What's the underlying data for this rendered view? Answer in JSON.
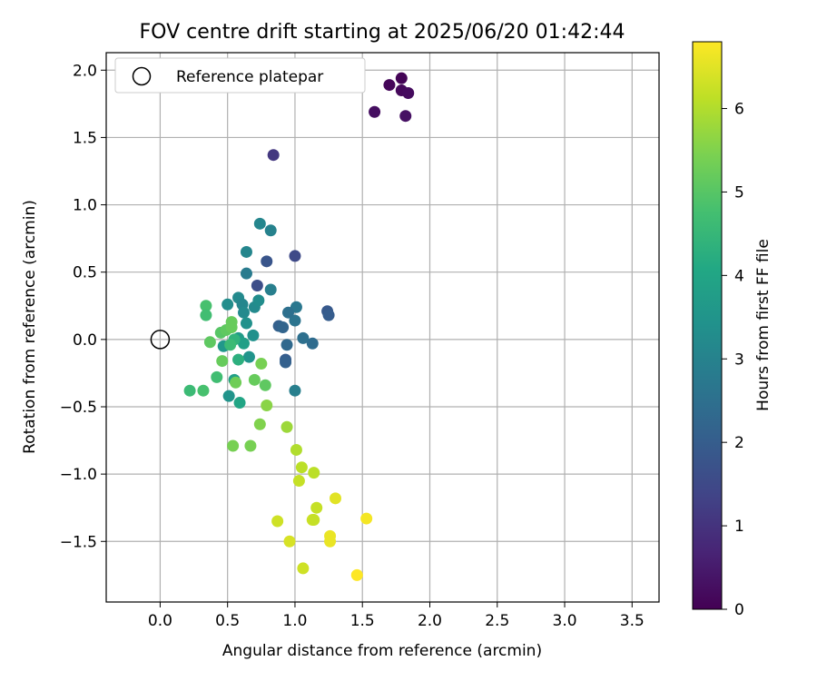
{
  "chart_data": {
    "type": "scatter",
    "title": "FOV centre drift starting at 2025/06/20 01:42:44",
    "xlabel": "Angular distance from reference (arcmin)",
    "ylabel": "Rotation from reference (arcmin)",
    "xlim": [
      -0.4,
      3.7
    ],
    "ylim": [
      -1.95,
      2.13
    ],
    "xticks": [
      0.0,
      0.5,
      1.0,
      1.5,
      2.0,
      2.5,
      3.0,
      3.5
    ],
    "xtick_labels": [
      "0.0",
      "0.5",
      "1.0",
      "1.5",
      "2.0",
      "2.5",
      "3.0",
      "3.5"
    ],
    "yticks": [
      -1.5,
      -1.0,
      -0.5,
      0.0,
      0.5,
      1.0,
      1.5,
      2.0
    ],
    "ytick_labels": [
      "−1.5",
      "−1.0",
      "−0.5",
      "0.0",
      "0.5",
      "1.0",
      "1.5",
      "2.0"
    ],
    "grid": true,
    "colormap": "viridis",
    "colorbar": {
      "label": "Hours from first FF file",
      "range": [
        0,
        6.8
      ],
      "ticks": [
        0,
        1,
        2,
        3,
        4,
        5,
        6
      ],
      "tick_labels": [
        "0",
        "1",
        "2",
        "3",
        "4",
        "5",
        "6"
      ]
    },
    "legend": {
      "position": "upper-left",
      "entries": [
        {
          "label": "Reference platepar",
          "marker": "open-circle"
        }
      ]
    },
    "reference_point": {
      "x": 0.0,
      "y": 0.0
    },
    "points": [
      {
        "x": 1.79,
        "y": 1.94,
        "c": 0.05
      },
      {
        "x": 1.7,
        "y": 1.89,
        "c": 0.1
      },
      {
        "x": 1.79,
        "y": 1.85,
        "c": 0.15
      },
      {
        "x": 1.84,
        "y": 1.83,
        "c": 0.2
      },
      {
        "x": 1.59,
        "y": 1.69,
        "c": 0.25
      },
      {
        "x": 1.82,
        "y": 1.66,
        "c": 0.3
      },
      {
        "x": 0.84,
        "y": 1.37,
        "c": 1.1
      },
      {
        "x": 1.0,
        "y": 0.62,
        "c": 1.5
      },
      {
        "x": 0.72,
        "y": 0.4,
        "c": 1.6
      },
      {
        "x": 0.79,
        "y": 0.58,
        "c": 1.8
      },
      {
        "x": 1.24,
        "y": 0.21,
        "c": 1.9
      },
      {
        "x": 1.25,
        "y": 0.18,
        "c": 2.0
      },
      {
        "x": 0.88,
        "y": 0.1,
        "c": 2.1
      },
      {
        "x": 0.91,
        "y": 0.09,
        "c": 2.2
      },
      {
        "x": 0.93,
        "y": -0.15,
        "c": 2.0
      },
      {
        "x": 0.93,
        "y": -0.17,
        "c": 2.1
      },
      {
        "x": 0.94,
        "y": -0.04,
        "c": 2.3
      },
      {
        "x": 1.13,
        "y": -0.03,
        "c": 2.4
      },
      {
        "x": 1.06,
        "y": 0.01,
        "c": 2.5
      },
      {
        "x": 1.0,
        "y": 0.14,
        "c": 2.6
      },
      {
        "x": 1.01,
        "y": 0.24,
        "c": 2.7
      },
      {
        "x": 0.95,
        "y": 0.2,
        "c": 2.5
      },
      {
        "x": 1.0,
        "y": -0.38,
        "c": 2.9
      },
      {
        "x": 0.64,
        "y": 0.49,
        "c": 2.8
      },
      {
        "x": 0.82,
        "y": 0.37,
        "c": 2.9
      },
      {
        "x": 0.74,
        "y": 0.86,
        "c": 3.1
      },
      {
        "x": 0.82,
        "y": 0.81,
        "c": 3.0
      },
      {
        "x": 0.64,
        "y": 0.65,
        "c": 3.1
      },
      {
        "x": 0.58,
        "y": 0.31,
        "c": 3.2
      },
      {
        "x": 0.61,
        "y": 0.26,
        "c": 3.1
      },
      {
        "x": 0.7,
        "y": 0.24,
        "c": 3.2
      },
      {
        "x": 0.73,
        "y": 0.29,
        "c": 3.3
      },
      {
        "x": 0.62,
        "y": 0.2,
        "c": 3.2
      },
      {
        "x": 0.5,
        "y": 0.26,
        "c": 3.3
      },
      {
        "x": 0.64,
        "y": 0.12,
        "c": 3.4
      },
      {
        "x": 0.69,
        "y": 0.03,
        "c": 3.4
      },
      {
        "x": 0.66,
        "y": -0.13,
        "c": 3.5
      },
      {
        "x": 0.47,
        "y": -0.05,
        "c": 3.6
      },
      {
        "x": 0.58,
        "y": 0.01,
        "c": 3.7
      },
      {
        "x": 0.62,
        "y": -0.03,
        "c": 3.8
      },
      {
        "x": 0.51,
        "y": -0.42,
        "c": 3.5
      },
      {
        "x": 0.55,
        "y": -0.3,
        "c": 3.8
      },
      {
        "x": 0.59,
        "y": -0.47,
        "c": 4.0
      },
      {
        "x": 0.58,
        "y": -0.15,
        "c": 4.3
      },
      {
        "x": 0.55,
        "y": 0.0,
        "c": 4.4
      },
      {
        "x": 0.52,
        "y": -0.04,
        "c": 4.6
      },
      {
        "x": 0.42,
        "y": -0.28,
        "c": 4.7
      },
      {
        "x": 0.22,
        "y": -0.38,
        "c": 4.6
      },
      {
        "x": 0.32,
        "y": -0.38,
        "c": 4.8
      },
      {
        "x": 0.34,
        "y": 0.25,
        "c": 4.8
      },
      {
        "x": 0.34,
        "y": 0.18,
        "c": 4.7
      },
      {
        "x": 0.45,
        "y": 0.05,
        "c": 5.0
      },
      {
        "x": 0.49,
        "y": 0.07,
        "c": 5.1
      },
      {
        "x": 0.53,
        "y": 0.09,
        "c": 5.2
      },
      {
        "x": 0.53,
        "y": 0.13,
        "c": 5.2
      },
      {
        "x": 0.37,
        "y": -0.02,
        "c": 5.1
      },
      {
        "x": 0.46,
        "y": -0.16,
        "c": 5.2
      },
      {
        "x": 0.56,
        "y": -0.32,
        "c": 5.3
      },
      {
        "x": 0.7,
        "y": -0.3,
        "c": 5.2
      },
      {
        "x": 0.78,
        "y": -0.34,
        "c": 5.1
      },
      {
        "x": 0.75,
        "y": -0.18,
        "c": 5.4
      },
      {
        "x": 0.79,
        "y": -0.49,
        "c": 5.6
      },
      {
        "x": 0.74,
        "y": -0.63,
        "c": 5.5
      },
      {
        "x": 0.54,
        "y": -0.79,
        "c": 5.4
      },
      {
        "x": 0.67,
        "y": -0.79,
        "c": 5.4
      },
      {
        "x": 0.94,
        "y": -0.65,
        "c": 5.8
      },
      {
        "x": 1.01,
        "y": -0.82,
        "c": 6.0
      },
      {
        "x": 1.05,
        "y": -0.95,
        "c": 6.1
      },
      {
        "x": 1.14,
        "y": -0.99,
        "c": 6.1
      },
      {
        "x": 1.03,
        "y": -1.05,
        "c": 6.2
      },
      {
        "x": 1.16,
        "y": -1.25,
        "c": 6.2
      },
      {
        "x": 1.13,
        "y": -1.34,
        "c": 6.3
      },
      {
        "x": 1.14,
        "y": -1.34,
        "c": 6.2
      },
      {
        "x": 0.87,
        "y": -1.35,
        "c": 6.3
      },
      {
        "x": 0.96,
        "y": -1.5,
        "c": 6.4
      },
      {
        "x": 1.06,
        "y": -1.7,
        "c": 6.3
      },
      {
        "x": 1.3,
        "y": -1.18,
        "c": 6.5
      },
      {
        "x": 1.26,
        "y": -1.46,
        "c": 6.6
      },
      {
        "x": 1.26,
        "y": -1.5,
        "c": 6.6
      },
      {
        "x": 1.53,
        "y": -1.33,
        "c": 6.7
      },
      {
        "x": 1.46,
        "y": -1.75,
        "c": 6.8
      }
    ]
  }
}
